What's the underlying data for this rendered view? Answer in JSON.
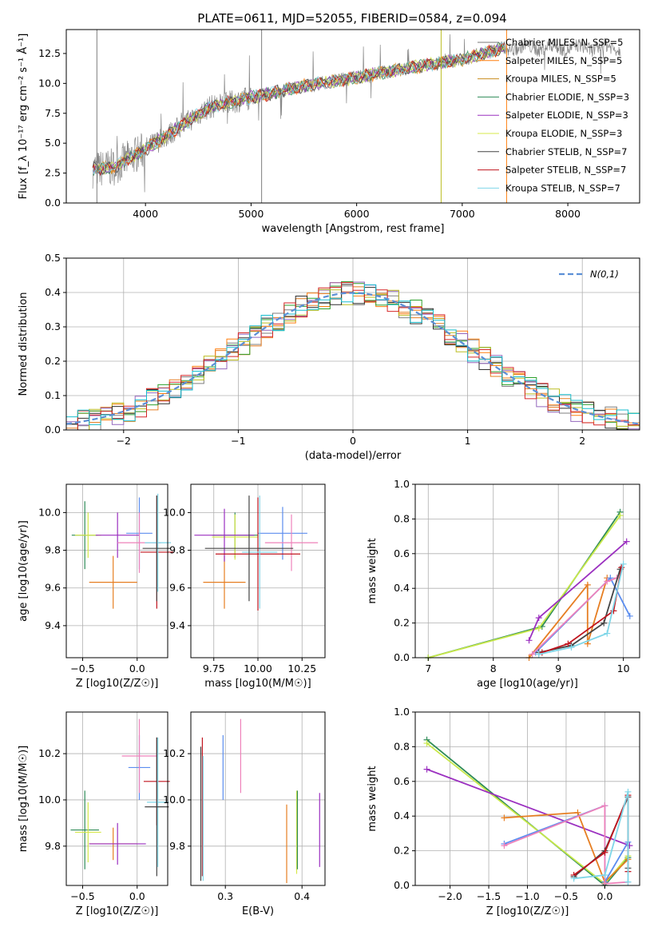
{
  "figure": {
    "title": "PLATE=0611, MJD=52055, FIBERID=0584, z=0.094",
    "colors": [
      "#7f7f7f",
      "#ff7f0e",
      "#e67e22",
      "#2ca02c",
      "#9467bd",
      "#bcbd22",
      "#2f2f2f",
      "#d62728",
      "#17becf"
    ],
    "flux_panel_color": "#888888"
  },
  "chart_data": [
    {
      "id": "spectrum",
      "type": "line",
      "xlabel": "wavelength [Angstrom, rest frame]",
      "ylabel": "Flux [f_λ 10⁻¹⁷ erg cm⁻² s⁻¹ Å⁻¹]",
      "xlim": [
        3250,
        8680
      ],
      "ylim": [
        0,
        14.5
      ],
      "xticks": [
        4000,
        5000,
        6000,
        7000,
        8000
      ],
      "yticks": [
        0.0,
        2.5,
        5.0,
        7.5,
        10.0,
        12.5
      ],
      "xtick_labels": [
        "4000",
        "5000",
        "6000",
        "7000",
        "8000"
      ],
      "ytick_labels": [
        "0.0",
        "2.5",
        "5.0",
        "7.5",
        "10.0",
        "12.5"
      ],
      "legend_position": "top-right",
      "series": [
        {
          "name": "Chabrier MILES, N_SSP=5",
          "color": "#777777"
        },
        {
          "name": "Salpeter MILES, N_SSP=5",
          "color": "#ff7f0e"
        },
        {
          "name": "Kroupa MILES, N_SSP=5",
          "color": "#c88b1e"
        },
        {
          "name": "Chabrier ELODIE, N_SSP=3",
          "color": "#2e8b57"
        },
        {
          "name": "Salpeter ELODIE, N_SSP=3",
          "color": "#9b30c0"
        },
        {
          "name": "Kroupa ELODIE, N_SSP=3",
          "color": "#d7e84a"
        },
        {
          "name": "Chabrier STELIB, N_SSP=7",
          "color": "#444444"
        },
        {
          "name": "Salpeter STELIB, N_SSP=7",
          "color": "#c0141e"
        },
        {
          "name": "Kroupa STELIB, N_SSP=7",
          "color": "#7fd6e8"
        }
      ],
      "data_trend": {
        "x": [
          3500,
          3700,
          4000,
          4300,
          4600,
          5000,
          5500,
          6000,
          6500,
          7000,
          7400
        ],
        "y": [
          2.8,
          3.0,
          4.5,
          6.2,
          8.0,
          8.8,
          9.8,
          10.5,
          11.3,
          12.0,
          13.0
        ]
      }
    },
    {
      "id": "residuals",
      "type": "histogram",
      "xlabel": "(data-model)/error",
      "ylabel": "Normed distribution",
      "xlim": [
        -2.5,
        2.5
      ],
      "ylim": [
        0,
        0.5
      ],
      "xticks": [
        -2,
        -1,
        0,
        1,
        2
      ],
      "yticks": [
        0.0,
        0.1,
        0.2,
        0.3,
        0.4,
        0.5
      ],
      "xtick_labels": [
        "−2",
        "−1",
        "0",
        "1",
        "2"
      ],
      "ytick_labels": [
        "0.0",
        "0.1",
        "0.2",
        "0.3",
        "0.4",
        "0.5"
      ],
      "legend": "N(0,1)",
      "legend_position": "top-right",
      "grid": true
    },
    {
      "id": "age_vs_Z",
      "type": "errorbar",
      "xlabel": "Z [log10(Z/Z☉)]",
      "ylabel": "age [log10(age/yr)]",
      "xlim": [
        -0.65,
        0.28
      ],
      "ylim": [
        9.23,
        10.15
      ],
      "xticks": [
        -0.5,
        0.0
      ],
      "yticks": [
        9.4,
        9.6,
        9.8,
        10.0
      ],
      "xtick_labels": [
        "−0.5",
        "0.0"
      ],
      "ytick_labels": [
        "9.4",
        "9.6",
        "9.8",
        "10.0"
      ],
      "points": [
        {
          "x": -0.48,
          "y": 9.88,
          "xerr": 0.12,
          "yerr": 0.18,
          "color": "#2e8b57"
        },
        {
          "x": -0.45,
          "y": 9.88,
          "xerr": 0.12,
          "yerr": 0.12,
          "color": "#d7e84a"
        },
        {
          "x": -0.22,
          "y": 9.63,
          "xerr": 0.22,
          "yerr": 0.14,
          "color": "#e67e22"
        },
        {
          "x": -0.18,
          "y": 9.88,
          "xerr": 0.2,
          "yerr": 0.12,
          "color": "#9b30c0"
        },
        {
          "x": 0.02,
          "y": 9.89,
          "xerr": 0.12,
          "yerr": 0.19,
          "color": "#5b8def"
        },
        {
          "x": 0.02,
          "y": 9.84,
          "xerr": 0.2,
          "yerr": 0.16,
          "color": "#ee82ba"
        },
        {
          "x": 0.18,
          "y": 9.79,
          "xerr": 0.15,
          "yerr": 0.3,
          "color": "#c0141e"
        },
        {
          "x": 0.19,
          "y": 9.84,
          "xerr": 0.12,
          "yerr": 0.26,
          "color": "#7fd6e8"
        },
        {
          "x": 0.18,
          "y": 9.81,
          "xerr": 0.13,
          "yerr": 0.28,
          "color": "#444444"
        }
      ]
    },
    {
      "id": "age_vs_mass",
      "type": "errorbar",
      "xlabel": "mass [log10(M/M☉)]",
      "ylabel": "",
      "xlim": [
        9.62,
        10.38
      ],
      "ylim": [
        9.23,
        10.15
      ],
      "xticks": [
        9.75,
        10.0,
        10.25
      ],
      "yticks": [
        9.4,
        9.6,
        9.8,
        10.0
      ],
      "xtick_labels": [
        "9.75",
        "10.00",
        "10.25"
      ],
      "ytick_labels": [
        "9.4",
        "9.6",
        "9.8",
        "10.0"
      ],
      "points": [
        {
          "x": 9.87,
          "y": 9.88,
          "xerr": 0.13,
          "yerr": 0.12,
          "color": "#2e8b57"
        },
        {
          "x": 9.87,
          "y": 9.87,
          "xerr": 0.13,
          "yerr": 0.12,
          "color": "#d7e84a"
        },
        {
          "x": 9.81,
          "y": 9.63,
          "xerr": 0.12,
          "yerr": 0.14,
          "color": "#e67e22"
        },
        {
          "x": 9.81,
          "y": 9.88,
          "xerr": 0.17,
          "yerr": 0.14,
          "color": "#9b30c0"
        },
        {
          "x": 10.14,
          "y": 9.89,
          "xerr": 0.14,
          "yerr": 0.14,
          "color": "#5b8def"
        },
        {
          "x": 10.19,
          "y": 9.84,
          "xerr": 0.15,
          "yerr": 0.15,
          "color": "#ee82ba"
        },
        {
          "x": 10.0,
          "y": 9.78,
          "xerr": 0.24,
          "yerr": 0.3,
          "color": "#c0141e"
        },
        {
          "x": 10.01,
          "y": 9.79,
          "xerr": 0.1,
          "yerr": 0.3,
          "color": "#7fd6e8"
        },
        {
          "x": 9.95,
          "y": 9.81,
          "xerr": 0.25,
          "yerr": 0.28,
          "color": "#444444"
        }
      ]
    },
    {
      "id": "weight_vs_age",
      "type": "line",
      "xlabel": "age [log10(age/yr)]",
      "ylabel": "mass weight",
      "xlim": [
        6.8,
        10.25
      ],
      "ylim": [
        0,
        1
      ],
      "xticks": [
        7,
        8,
        9,
        10
      ],
      "yticks": [
        0.0,
        0.2,
        0.4,
        0.6,
        0.8,
        1.0
      ],
      "xtick_labels": [
        "7",
        "8",
        "9",
        "10"
      ],
      "ytick_labels": [
        "0.0",
        "0.2",
        "0.4",
        "0.6",
        "0.8",
        "1.0"
      ],
      "series": [
        {
          "color": "#2e8b57",
          "points": [
            [
              7.0,
              0.0
            ],
            [
              8.75,
              0.18
            ],
            [
              9.95,
              0.84
            ]
          ]
        },
        {
          "color": "#c8e84a",
          "points": [
            [
              7.0,
              0.0
            ],
            [
              8.7,
              0.17
            ],
            [
              9.95,
              0.82
            ]
          ]
        },
        {
          "color": "#9b30c0",
          "points": [
            [
              8.55,
              0.1
            ],
            [
              8.7,
              0.23
            ],
            [
              10.05,
              0.67
            ]
          ]
        },
        {
          "color": "#e67e22",
          "points": [
            [
              8.55,
              0.0
            ],
            [
              9.45,
              0.42
            ],
            [
              9.45,
              0.08
            ],
            [
              9.75,
              0.46
            ]
          ]
        },
        {
          "color": "#5b8def",
          "points": [
            [
              8.65,
              0.03
            ],
            [
              9.8,
              0.46
            ],
            [
              10.1,
              0.24
            ]
          ]
        },
        {
          "color": "#ee82ba",
          "points": [
            [
              8.6,
              0.02
            ],
            [
              9.75,
              0.44
            ],
            [
              9.9,
              0.46
            ]
          ]
        },
        {
          "color": "#444444",
          "points": [
            [
              8.7,
              0.03
            ],
            [
              9.2,
              0.07
            ],
            [
              9.7,
              0.2
            ],
            [
              9.95,
              0.51
            ]
          ]
        },
        {
          "color": "#c0141e",
          "points": [
            [
              8.75,
              0.03
            ],
            [
              9.15,
              0.08
            ],
            [
              9.85,
              0.27
            ],
            [
              9.97,
              0.52
            ]
          ]
        },
        {
          "color": "#7fd6e8",
          "points": [
            [
              8.7,
              0.02
            ],
            [
              9.2,
              0.06
            ],
            [
              9.75,
              0.14
            ],
            [
              10.0,
              0.54
            ]
          ]
        }
      ]
    },
    {
      "id": "mass_vs_Z",
      "type": "errorbar",
      "xlabel": "Z [log10(Z/Z☉)]",
      "ylabel": "mass [log10(M/M☉)]",
      "xlim": [
        -0.65,
        0.28
      ],
      "ylim": [
        9.63,
        10.38
      ],
      "xticks": [
        -0.5,
        0.0
      ],
      "yticks": [
        9.8,
        10.0,
        10.2
      ],
      "xtick_labels": [
        "−0.5",
        "0.0"
      ],
      "ytick_labels": [
        "9.8",
        "10.0",
        "10.2"
      ],
      "points": [
        {
          "x": -0.48,
          "y": 9.87,
          "xerr": 0.13,
          "yerr": 0.17,
          "color": "#2e8b57"
        },
        {
          "x": -0.45,
          "y": 9.86,
          "xerr": 0.12,
          "yerr": 0.13,
          "color": "#d7e84a"
        },
        {
          "x": -0.22,
          "y": 9.81,
          "xerr": 0.22,
          "yerr": 0.07,
          "color": "#e67e22"
        },
        {
          "x": -0.18,
          "y": 9.81,
          "xerr": 0.26,
          "yerr": 0.09,
          "color": "#9b30c0"
        },
        {
          "x": 0.02,
          "y": 10.14,
          "xerr": 0.1,
          "yerr": 0.14,
          "color": "#5b8def"
        },
        {
          "x": 0.02,
          "y": 10.19,
          "xerr": 0.16,
          "yerr": 0.16,
          "color": "#ee82ba"
        },
        {
          "x": 0.18,
          "y": 10.08,
          "xerr": 0.12,
          "yerr": 0.19,
          "color": "#c0141e"
        },
        {
          "x": 0.19,
          "y": 9.99,
          "xerr": 0.1,
          "yerr": 0.28,
          "color": "#7fd6e8"
        },
        {
          "x": 0.18,
          "y": 9.97,
          "xerr": 0.11,
          "yerr": 0.3,
          "color": "#444444"
        }
      ]
    },
    {
      "id": "mass_vs_ebv",
      "type": "errorbar",
      "xlabel": "E(B-V)",
      "ylabel": "",
      "xlim": [
        0.255,
        0.43
      ],
      "ylim": [
        9.63,
        10.38
      ],
      "xticks": [
        0.3,
        0.4
      ],
      "yticks": [
        9.8,
        10.0,
        10.2
      ],
      "xtick_labels": [
        "0.3",
        "0.4"
      ],
      "ytick_labels": [
        "9.8",
        "10.0",
        "10.2"
      ],
      "points": [
        {
          "x": 0.268,
          "y": 9.94,
          "xerr": 0,
          "yerr": 0.29,
          "color": "#444444"
        },
        {
          "x": 0.27,
          "y": 9.97,
          "xerr": 0,
          "yerr": 0.3,
          "color": "#c0141e"
        },
        {
          "x": 0.271,
          "y": 9.92,
          "xerr": 0,
          "yerr": 0.27,
          "color": "#7fd6e8"
        },
        {
          "x": 0.297,
          "y": 10.14,
          "xerr": 0,
          "yerr": 0.14,
          "color": "#5b8def"
        },
        {
          "x": 0.32,
          "y": 10.19,
          "xerr": 0,
          "yerr": 0.16,
          "color": "#ee82ba"
        },
        {
          "x": 0.38,
          "y": 9.81,
          "xerr": 0,
          "yerr": 0.17,
          "color": "#e67e22"
        },
        {
          "x": 0.393,
          "y": 9.86,
          "xerr": 0,
          "yerr": 0.18,
          "color": "#d7e84a"
        },
        {
          "x": 0.394,
          "y": 9.87,
          "xerr": 0,
          "yerr": 0.17,
          "color": "#2e8b57"
        },
        {
          "x": 0.423,
          "y": 9.87,
          "xerr": 0,
          "yerr": 0.16,
          "color": "#9b30c0"
        }
      ]
    },
    {
      "id": "weight_vs_Z",
      "type": "line",
      "xlabel": "Z [log10(Z/Z☉)]",
      "ylabel": "mass weight",
      "xlim": [
        -2.45,
        0.45
      ],
      "ylim": [
        0,
        1
      ],
      "xticks": [
        -2.0,
        -1.5,
        -1.0,
        -0.5,
        0.0
      ],
      "yticks": [
        0.0,
        0.2,
        0.4,
        0.6,
        0.8,
        1.0
      ],
      "xtick_labels": [
        "−2.0",
        "−1.5",
        "−1.0",
        "−0.5",
        "0.0"
      ],
      "ytick_labels": [
        "0.0",
        "0.2",
        "0.4",
        "0.6",
        "0.8",
        "1.0"
      ],
      "series": [
        {
          "color": "#2e8b57",
          "points": [
            [
              -2.3,
              0.84
            ],
            [
              0.0,
              0.0
            ],
            [
              0.3,
              0.16
            ]
          ]
        },
        {
          "color": "#c8e84a",
          "points": [
            [
              -2.3,
              0.82
            ],
            [
              0.0,
              0.01
            ],
            [
              0.3,
              0.17
            ]
          ]
        },
        {
          "color": "#9b30c0",
          "points": [
            [
              -2.3,
              0.67
            ],
            [
              0.32,
              0.23
            ]
          ]
        },
        {
          "color": "#e67e22",
          "points": [
            [
              -1.3,
              0.39
            ],
            [
              -0.35,
              0.42
            ],
            [
              0.0,
              0.02
            ],
            [
              0.3,
              0.15
            ]
          ]
        },
        {
          "color": "#5b8def",
          "points": [
            [
              -1.3,
              0.24
            ],
            [
              0.0,
              0.46
            ],
            [
              0.0,
              0.02
            ],
            [
              0.3,
              0.25
            ]
          ]
        },
        {
          "color": "#ee82ba",
          "points": [
            [
              -1.3,
              0.23
            ],
            [
              0.0,
              0.46
            ],
            [
              0.0,
              0.01
            ],
            [
              0.3,
              0.02
            ]
          ]
        },
        {
          "color": "#444444",
          "points": [
            [
              -0.4,
              0.05
            ],
            [
              0.0,
              0.2
            ],
            [
              0.3,
              0.51
            ],
            [
              0.3,
              0.1
            ]
          ]
        },
        {
          "color": "#c0141e",
          "points": [
            [
              -0.4,
              0.06
            ],
            [
              0.0,
              0.19
            ],
            [
              0.3,
              0.52
            ],
            [
              0.3,
              0.08
            ]
          ]
        },
        {
          "color": "#7fd6e8",
          "points": [
            [
              -0.4,
              0.04
            ],
            [
              0.0,
              0.06
            ],
            [
              0.3,
              0.54
            ],
            [
              0.3,
              0.02
            ]
          ]
        }
      ]
    }
  ]
}
